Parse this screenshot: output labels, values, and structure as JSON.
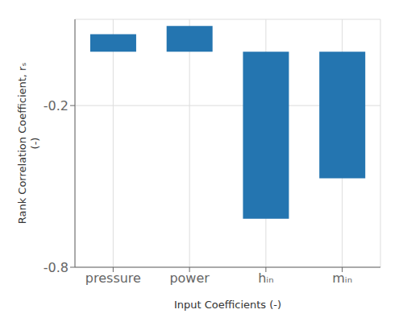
{
  "chart_data": {
    "type": "bar",
    "categories": [
      "pressure",
      "power",
      "hᵢₙ",
      "mᵢₙ"
    ],
    "values": [
      0.065,
      0.095,
      -0.62,
      -0.47
    ],
    "color": "#2475b0",
    "xlabel": "Input Coefficients (-)",
    "ylabel": "Rank Correlation Coefficient, rₛ\n(-)",
    "ylim": [
      -0.8,
      0.12
    ],
    "yticks": [
      -0.8,
      -0.2
    ],
    "grid": true
  }
}
